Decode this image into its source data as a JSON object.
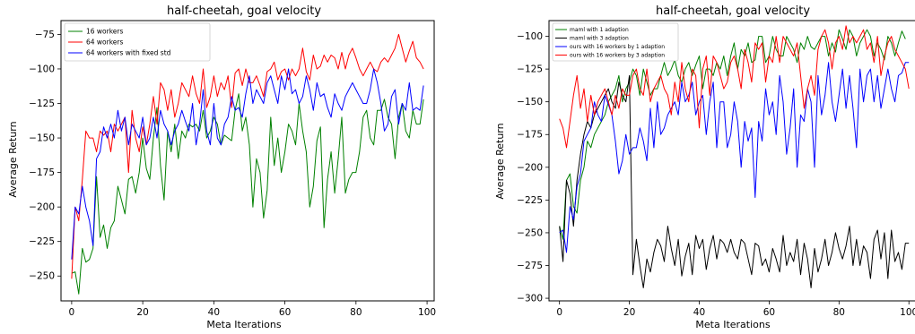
{
  "chart_data": [
    {
      "type": "line",
      "title": "half-cheetah, goal velocity",
      "xlabel": "Meta Iterations",
      "ylabel": "Average Return",
      "xlim": [
        -3,
        102
      ],
      "ylim": [
        -268,
        -65
      ],
      "xticks": [
        0,
        20,
        40,
        60,
        80,
        100
      ],
      "yticks": [
        -250,
        -225,
        -200,
        -175,
        -150,
        -125,
        -100,
        -75
      ],
      "xtick_labels": [
        "0",
        "20",
        "40",
        "60",
        "80",
        "100"
      ],
      "ytick_labels": [
        "−250",
        "−225",
        "−200",
        "−175",
        "−150",
        "−125",
        "−100",
        "−75"
      ],
      "legend_position": "top-left",
      "grid": false,
      "series": [
        {
          "name": "16 workers",
          "color": "#008000",
          "values": [
            -248,
            -247,
            -263,
            -230,
            -240,
            -238,
            -230,
            -178,
            -222,
            -213,
            -230,
            -215,
            -210,
            -185,
            -195,
            -205,
            -180,
            -178,
            -190,
            -175,
            -150,
            -172,
            -180,
            -150,
            -128,
            -170,
            -195,
            -145,
            -160,
            -140,
            -165,
            -145,
            -150,
            -140,
            -142,
            -140,
            -145,
            -130,
            -150,
            -145,
            -135,
            -140,
            -155,
            -148,
            -150,
            -152,
            -130,
            -118,
            -145,
            -135,
            -155,
            -200,
            -165,
            -175,
            -208,
            -188,
            -135,
            -170,
            -150,
            -175,
            -160,
            -140,
            -145,
            -155,
            -125,
            -145,
            -160,
            -200,
            -185,
            -152,
            -142,
            -215,
            -180,
            -160,
            -190,
            -165,
            -135,
            -190,
            -180,
            -175,
            -175,
            -160,
            -135,
            -130,
            -150,
            -155,
            -130,
            -130,
            -122,
            -135,
            -140,
            -165,
            -135,
            -125,
            -145,
            -150,
            -130,
            -140,
            -140,
            -122
          ]
        },
        {
          "name": "64 workers",
          "color": "#ff0000",
          "values": [
            -252,
            -200,
            -210,
            -180,
            -145,
            -150,
            -150,
            -160,
            -145,
            -148,
            -145,
            -160,
            -140,
            -145,
            -140,
            -135,
            -175,
            -130,
            -150,
            -160,
            -142,
            -155,
            -140,
            -120,
            -140,
            -110,
            -115,
            -130,
            -115,
            -135,
            -125,
            -110,
            -115,
            -120,
            -105,
            -118,
            -125,
            -100,
            -128,
            -120,
            -105,
            -120,
            -110,
            -115,
            -105,
            -128,
            -103,
            -100,
            -112,
            -100,
            -110,
            -110,
            -105,
            -112,
            -120,
            -102,
            -100,
            -95,
            -108,
            -102,
            -100,
            -108,
            -100,
            -105,
            -100,
            -85,
            -102,
            -108,
            -90,
            -100,
            -98,
            -90,
            -95,
            -90,
            -92,
            -100,
            -88,
            -100,
            -90,
            -85,
            -92,
            -100,
            -105,
            -100,
            -95,
            -100,
            -102,
            -95,
            -92,
            -95,
            -90,
            -85,
            -75,
            -85,
            -95,
            -87,
            -80,
            -92,
            -95,
            -100
          ]
        },
        {
          "name": "64 workers with fixed std",
          "color": "#0000ff",
          "values": [
            -238,
            -200,
            -205,
            -185,
            -200,
            -210,
            -228,
            -165,
            -160,
            -142,
            -150,
            -140,
            -150,
            -130,
            -145,
            -135,
            -155,
            -140,
            -145,
            -150,
            -135,
            -155,
            -150,
            -135,
            -150,
            -130,
            -140,
            -145,
            -155,
            -145,
            -140,
            -130,
            -138,
            -145,
            -125,
            -155,
            -140,
            -115,
            -145,
            -155,
            -125,
            -150,
            -155,
            -140,
            -135,
            -120,
            -130,
            -128,
            -135,
            -118,
            -105,
            -125,
            -115,
            -120,
            -125,
            -110,
            -105,
            -115,
            -125,
            -105,
            -115,
            -100,
            -118,
            -115,
            -125,
            -120,
            -105,
            -115,
            -130,
            -110,
            -120,
            -118,
            -128,
            -135,
            -118,
            -125,
            -130,
            -120,
            -115,
            -110,
            -115,
            -120,
            -125,
            -125,
            -115,
            -100,
            -110,
            -125,
            -145,
            -140,
            -120,
            -115,
            -140,
            -125,
            -130,
            -110,
            -130,
            -128,
            -130,
            -112
          ]
        }
      ]
    },
    {
      "type": "line",
      "title": "half-cheetah, goal velocity",
      "xlabel": "Meta Iterations",
      "ylabel": "Average Return",
      "xlim": [
        -3,
        102
      ],
      "ylim": [
        -302,
        -88
      ],
      "xticks": [
        0,
        20,
        40,
        60,
        80,
        100
      ],
      "yticks": [
        -300,
        -275,
        -250,
        -225,
        -200,
        -175,
        -150,
        -125,
        -100
      ],
      "xtick_labels": [
        "0",
        "20",
        "40",
        "60",
        "80",
        "100"
      ],
      "ytick_labels": [
        "−300",
        "−275",
        "−250",
        "−225",
        "−200",
        "−175",
        "−150",
        "−125",
        "−100"
      ],
      "legend_position": "top-left",
      "grid": false,
      "series": [
        {
          "name": "maml with 1 adaption",
          "color": "#008000",
          "values": [
            -245,
            -255,
            -210,
            -205,
            -230,
            -235,
            -210,
            -200,
            -180,
            -185,
            -175,
            -170,
            -165,
            -160,
            -150,
            -145,
            -140,
            -130,
            -150,
            -140,
            -135,
            -125,
            -130,
            -145,
            -125,
            -135,
            -145,
            -140,
            -140,
            -130,
            -120,
            -130,
            -125,
            -118,
            -130,
            -135,
            -125,
            -120,
            -130,
            -122,
            -115,
            -140,
            -125,
            -125,
            -130,
            -120,
            -125,
            -115,
            -130,
            -115,
            -105,
            -125,
            -110,
            -115,
            -105,
            -120,
            -118,
            -100,
            -100,
            -120,
            -115,
            -100,
            -110,
            -115,
            -115,
            -100,
            -105,
            -110,
            -120,
            -105,
            -110,
            -100,
            -108,
            -110,
            -105,
            -100,
            -100,
            -115,
            -105,
            -112,
            -95,
            -102,
            -110,
            -95,
            -100,
            -115,
            -105,
            -100,
            -95,
            -100,
            -115,
            -105,
            -110,
            -118,
            -100,
            -105,
            -115,
            -105,
            -96,
            -102
          ]
        },
        {
          "name": "maml with 3 adaption",
          "color": "#000000",
          "values": [
            -245,
            -272,
            -210,
            -220,
            -245,
            -210,
            -190,
            -175,
            -165,
            -170,
            -160,
            -155,
            -150,
            -145,
            -140,
            -150,
            -155,
            -135,
            -145,
            -150,
            -130,
            -282,
            -255,
            -275,
            -292,
            -270,
            -280,
            -265,
            -255,
            -260,
            -272,
            -245,
            -262,
            -275,
            -255,
            -283,
            -268,
            -258,
            -282,
            -252,
            -262,
            -255,
            -278,
            -262,
            -252,
            -270,
            -255,
            -258,
            -265,
            -255,
            -265,
            -270,
            -255,
            -258,
            -270,
            -282,
            -258,
            -260,
            -275,
            -270,
            -280,
            -262,
            -270,
            -280,
            -252,
            -275,
            -265,
            -272,
            -255,
            -282,
            -258,
            -270,
            -292,
            -262,
            -280,
            -270,
            -255,
            -275,
            -265,
            -250,
            -262,
            -270,
            -260,
            -245,
            -275,
            -255,
            -275,
            -260,
            -265,
            -285,
            -255,
            -248,
            -270,
            -250,
            -285,
            -248,
            -272,
            -265,
            -278,
            -258,
            -258
          ]
        },
        {
          "name": "ours with 16 workers by 1 adaption",
          "color": "#0000ff",
          "values": [
            -250,
            -248,
            -265,
            -230,
            -240,
            -215,
            -205,
            -180,
            -175,
            -170,
            -150,
            -160,
            -165,
            -145,
            -152,
            -160,
            -180,
            -205,
            -195,
            -175,
            -190,
            -185,
            -185,
            -170,
            -180,
            -195,
            -155,
            -185,
            -150,
            -175,
            -170,
            -160,
            -155,
            -150,
            -160,
            -135,
            -150,
            -145,
            -135,
            -160,
            -150,
            -145,
            -175,
            -150,
            -135,
            -185,
            -150,
            -150,
            -185,
            -175,
            -150,
            -165,
            -200,
            -165,
            -180,
            -170,
            -223,
            -165,
            -180,
            -140,
            -160,
            -150,
            -175,
            -130,
            -150,
            -190,
            -170,
            -140,
            -200,
            -160,
            -165,
            -140,
            -150,
            -200,
            -130,
            -160,
            -145,
            -120,
            -150,
            -165,
            -145,
            -125,
            -155,
            -130,
            -155,
            -185,
            -125,
            -150,
            -130,
            -125,
            -150,
            -130,
            -155,
            -140,
            -125,
            -140,
            -150,
            -130,
            -128,
            -120,
            -120
          ]
        },
        {
          "name": "ours with 16 workers by 3 adaption",
          "color": "#ff0000",
          "values": [
            -163,
            -170,
            -185,
            -165,
            -145,
            -130,
            -155,
            -140,
            -165,
            -145,
            -160,
            -150,
            -145,
            -140,
            -150,
            -160,
            -145,
            -155,
            -140,
            -145,
            -145,
            -130,
            -125,
            -140,
            -145,
            -125,
            -150,
            -140,
            -135,
            -130,
            -140,
            -145,
            -160,
            -135,
            -150,
            -120,
            -140,
            -150,
            -125,
            -130,
            -170,
            -125,
            -115,
            -145,
            -115,
            -120,
            -130,
            -140,
            -135,
            -120,
            -115,
            -125,
            -140,
            -110,
            -120,
            -135,
            -105,
            -110,
            -105,
            -135,
            -115,
            -120,
            -100,
            -120,
            -100,
            -105,
            -110,
            -115,
            -105,
            -130,
            -155,
            -140,
            -130,
            -145,
            -110,
            -100,
            -95,
            -105,
            -125,
            -105,
            -100,
            -110,
            -92,
            -105,
            -100,
            -105,
            -100,
            -95,
            -110,
            -105,
            -120,
            -100,
            -130,
            -115,
            -105,
            -100,
            -110,
            -115,
            -120,
            -125,
            -140
          ]
        }
      ]
    }
  ]
}
